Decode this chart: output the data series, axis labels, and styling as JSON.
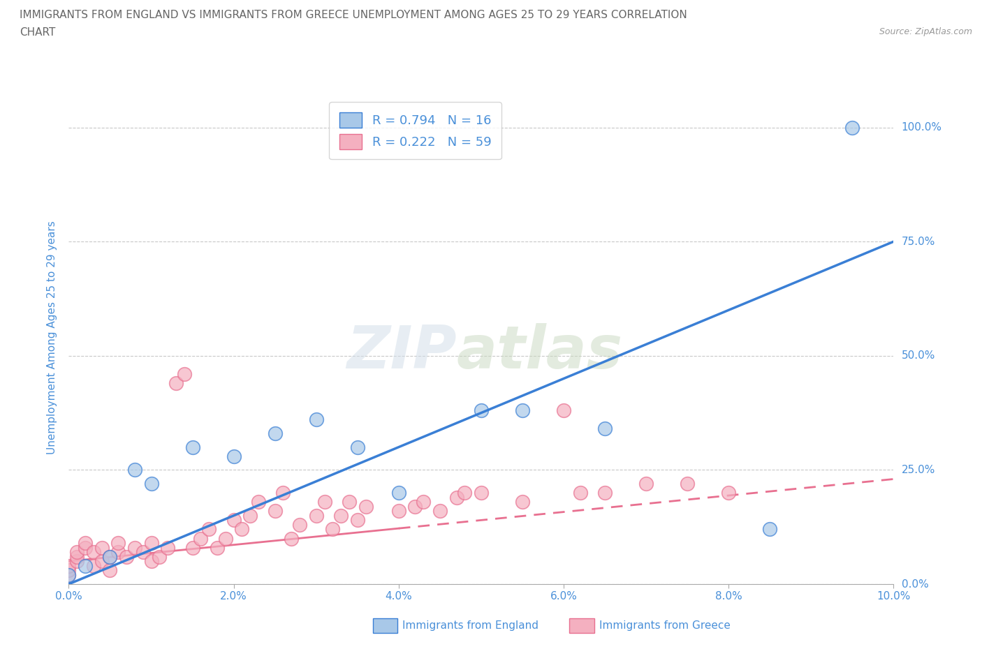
{
  "title_line1": "IMMIGRANTS FROM ENGLAND VS IMMIGRANTS FROM GREECE UNEMPLOYMENT AMONG AGES 25 TO 29 YEARS CORRELATION",
  "title_line2": "CHART",
  "source_text": "Source: ZipAtlas.com",
  "ylabel": "Unemployment Among Ages 25 to 29 years",
  "watermark": "ZIPatlas",
  "england_R": 0.794,
  "england_N": 16,
  "greece_R": 0.222,
  "greece_N": 59,
  "england_scatter_color": "#a8c8e8",
  "greece_scatter_color": "#f4b0c0",
  "england_line_color": "#3a7fd5",
  "greece_line_color": "#e87090",
  "xlim": [
    0.0,
    0.1
  ],
  "ylim": [
    0.0,
    1.08
  ],
  "xtick_labels": [
    "0.0%",
    "",
    "2.0%",
    "",
    "4.0%",
    "",
    "6.0%",
    "",
    "8.0%",
    "",
    "10.0%"
  ],
  "xtick_vals": [
    0.0,
    0.01,
    0.02,
    0.03,
    0.04,
    0.05,
    0.06,
    0.07,
    0.08,
    0.09,
    0.1
  ],
  "ytick_labels": [
    "0.0%",
    "25.0%",
    "50.0%",
    "75.0%",
    "100.0%"
  ],
  "ytick_vals": [
    0.0,
    0.25,
    0.5,
    0.75,
    1.0
  ],
  "england_scatter_x": [
    0.0,
    0.002,
    0.005,
    0.008,
    0.01,
    0.015,
    0.02,
    0.025,
    0.03,
    0.035,
    0.04,
    0.05,
    0.055,
    0.065,
    0.085,
    0.095
  ],
  "england_scatter_y": [
    0.02,
    0.04,
    0.06,
    0.25,
    0.22,
    0.3,
    0.28,
    0.33,
    0.36,
    0.3,
    0.2,
    0.38,
    0.38,
    0.34,
    0.12,
    1.0
  ],
  "greece_scatter_x": [
    0.0,
    0.0,
    0.0,
    0.001,
    0.001,
    0.001,
    0.002,
    0.002,
    0.003,
    0.003,
    0.004,
    0.004,
    0.005,
    0.005,
    0.006,
    0.006,
    0.007,
    0.008,
    0.009,
    0.01,
    0.01,
    0.011,
    0.012,
    0.013,
    0.014,
    0.015,
    0.016,
    0.017,
    0.018,
    0.019,
    0.02,
    0.021,
    0.022,
    0.023,
    0.025,
    0.026,
    0.027,
    0.028,
    0.03,
    0.031,
    0.032,
    0.033,
    0.034,
    0.035,
    0.036,
    0.04,
    0.042,
    0.043,
    0.045,
    0.047,
    0.048,
    0.05,
    0.055,
    0.06,
    0.062,
    0.065,
    0.07,
    0.075,
    0.08
  ],
  "greece_scatter_y": [
    0.02,
    0.03,
    0.04,
    0.05,
    0.06,
    0.07,
    0.08,
    0.09,
    0.04,
    0.07,
    0.05,
    0.08,
    0.03,
    0.06,
    0.07,
    0.09,
    0.06,
    0.08,
    0.07,
    0.05,
    0.09,
    0.06,
    0.08,
    0.44,
    0.46,
    0.08,
    0.1,
    0.12,
    0.08,
    0.1,
    0.14,
    0.12,
    0.15,
    0.18,
    0.16,
    0.2,
    0.1,
    0.13,
    0.15,
    0.18,
    0.12,
    0.15,
    0.18,
    0.14,
    0.17,
    0.16,
    0.17,
    0.18,
    0.16,
    0.19,
    0.2,
    0.2,
    0.18,
    0.38,
    0.2,
    0.2,
    0.22,
    0.22,
    0.2
  ],
  "background_color": "#ffffff",
  "grid_color": "#c8c8c8",
  "tick_label_color": "#4a90d9",
  "title_color": "#666666",
  "label_color": "#4a90d9",
  "england_line_slope": 7.5,
  "england_line_intercept": 0.0,
  "greece_line_slope": 1.8,
  "greece_line_intercept": 0.05
}
